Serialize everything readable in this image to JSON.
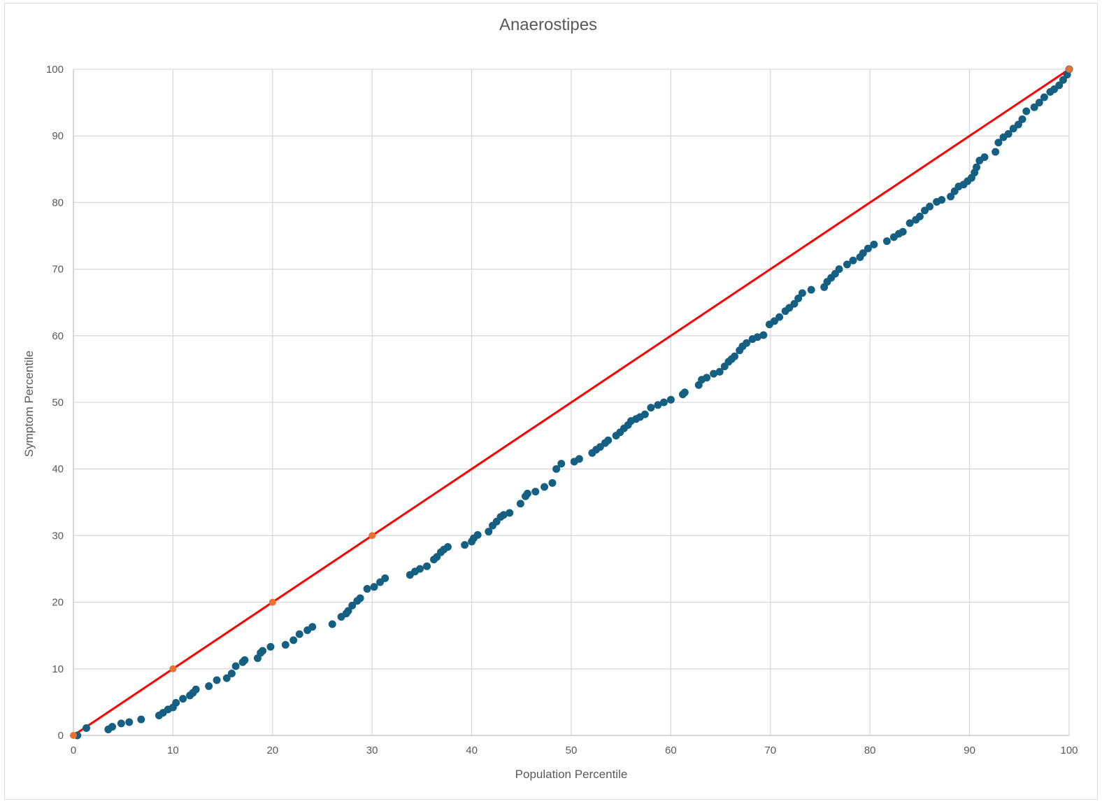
{
  "chart_data": {
    "type": "scatter",
    "title": "Anaerostipes",
    "xlabel": "Population Percentile",
    "ylabel": "Symptom Percentile",
    "xlim": [
      0,
      100
    ],
    "ylim": [
      0,
      100
    ],
    "xticks": [
      0,
      10,
      20,
      30,
      40,
      50,
      60,
      70,
      80,
      90,
      100
    ],
    "yticks": [
      0,
      10,
      20,
      30,
      40,
      50,
      60,
      70,
      80,
      90,
      100
    ],
    "grid": true,
    "legend": "none",
    "colors": {
      "points": "#156082",
      "reference_line": "#ff0000",
      "reference_markers": "#e97132",
      "grid": "#d9d9d9"
    },
    "series": [
      {
        "kind": "points",
        "x": [
          0.4,
          1.3,
          3.5,
          3.9,
          4.8,
          5.6,
          6.8,
          8.6,
          9.0,
          9.5,
          10.0,
          10.3,
          11.0,
          11.7,
          12.0,
          12.3,
          13.6,
          14.4,
          15.4,
          15.9,
          16.3,
          17.0,
          17.2,
          18.5,
          18.8,
          19.0,
          19.8,
          21.3,
          22.1,
          22.7,
          23.5,
          24.0,
          26.0,
          26.9,
          27.4,
          27.6,
          28.0,
          28.5,
          28.8,
          29.5,
          30.2,
          30.8,
          31.3,
          33.8,
          34.3,
          34.8,
          35.5,
          36.2,
          36.5,
          36.9,
          37.2,
          37.6,
          39.3,
          40.0,
          40.2,
          40.6,
          41.7,
          42.1,
          42.5,
          42.9,
          43.2,
          43.8,
          44.9,
          45.4,
          45.6,
          46.4,
          47.3,
          48.1,
          48.5,
          49.0,
          50.3,
          50.8,
          52.1,
          52.5,
          52.9,
          53.4,
          53.7,
          54.5,
          54.9,
          55.3,
          55.7,
          56.0,
          56.5,
          56.9,
          57.4,
          58.0,
          58.7,
          59.3,
          60.0,
          61.2,
          61.4,
          62.8,
          63.1,
          63.6,
          64.3,
          64.9,
          65.4,
          65.8,
          66.1,
          66.4,
          66.9,
          67.2,
          67.6,
          68.2,
          68.7,
          69.3,
          69.9,
          70.4,
          70.9,
          71.5,
          71.9,
          72.4,
          72.8,
          73.2,
          74.1,
          75.4,
          75.7,
          76.1,
          76.5,
          76.9,
          77.7,
          78.3,
          79.0,
          79.3,
          79.8,
          80.4,
          81.7,
          82.4,
          82.9,
          83.3,
          84.0,
          84.6,
          85.0,
          85.5,
          86.0,
          86.7,
          87.2,
          88.1,
          88.5,
          88.9,
          89.4,
          89.8,
          90.2,
          90.5,
          90.7,
          91.0,
          91.5,
          92.6,
          92.9,
          93.4,
          93.9,
          94.4,
          94.9,
          95.3,
          95.7,
          96.5,
          97.0,
          97.5,
          98.1,
          98.5,
          99.0,
          99.4,
          99.8,
          100
        ],
        "y": [
          0,
          1.1,
          0.9,
          1.3,
          1.8,
          2.0,
          2.4,
          3.0,
          3.4,
          3.9,
          4.2,
          4.9,
          5.5,
          6.0,
          6.4,
          6.9,
          7.4,
          8.3,
          8.6,
          9.3,
          10.4,
          11.0,
          11.3,
          11.6,
          12.4,
          12.7,
          13.3,
          13.6,
          14.3,
          15.2,
          15.8,
          16.3,
          16.7,
          17.8,
          18.3,
          18.7,
          19.5,
          20.2,
          20.6,
          22.0,
          22.3,
          23.0,
          23.6,
          24.1,
          24.6,
          25.0,
          25.4,
          26.4,
          26.8,
          27.5,
          27.9,
          28.3,
          28.6,
          29.1,
          29.6,
          30.1,
          30.6,
          31.5,
          32.1,
          32.8,
          33.1,
          33.4,
          34.8,
          35.9,
          36.3,
          36.6,
          37.3,
          37.9,
          40.0,
          40.8,
          41.1,
          41.5,
          42.4,
          42.9,
          43.3,
          43.9,
          44.3,
          45.0,
          45.5,
          46.1,
          46.6,
          47.2,
          47.5,
          47.8,
          48.2,
          49.2,
          49.6,
          50.0,
          50.4,
          51.2,
          51.5,
          52.6,
          53.4,
          53.7,
          54.3,
          54.6,
          55.4,
          56.1,
          56.5,
          56.9,
          57.8,
          58.4,
          58.9,
          59.5,
          59.8,
          60.1,
          61.7,
          62.2,
          62.8,
          63.7,
          64.2,
          64.8,
          65.6,
          66.4,
          66.9,
          67.3,
          68.1,
          68.7,
          69.3,
          70.0,
          70.7,
          71.3,
          71.8,
          72.4,
          73.1,
          73.7,
          74.2,
          74.8,
          75.3,
          75.6,
          76.9,
          77.4,
          77.9,
          78.8,
          79.4,
          80.1,
          80.4,
          80.9,
          81.7,
          82.4,
          82.7,
          83.2,
          83.7,
          84.5,
          85.3,
          86.3,
          86.8,
          87.6,
          89.0,
          89.8,
          90.3,
          91.1,
          91.7,
          92.5,
          93.7,
          94.3,
          95.0,
          95.8,
          96.6,
          97.0,
          97.6,
          98.4,
          99.2,
          100
        ]
      },
      {
        "kind": "line-with-markers",
        "x": [
          0,
          10,
          20,
          30,
          100
        ],
        "y": [
          0,
          10,
          20,
          30,
          100
        ]
      }
    ]
  }
}
